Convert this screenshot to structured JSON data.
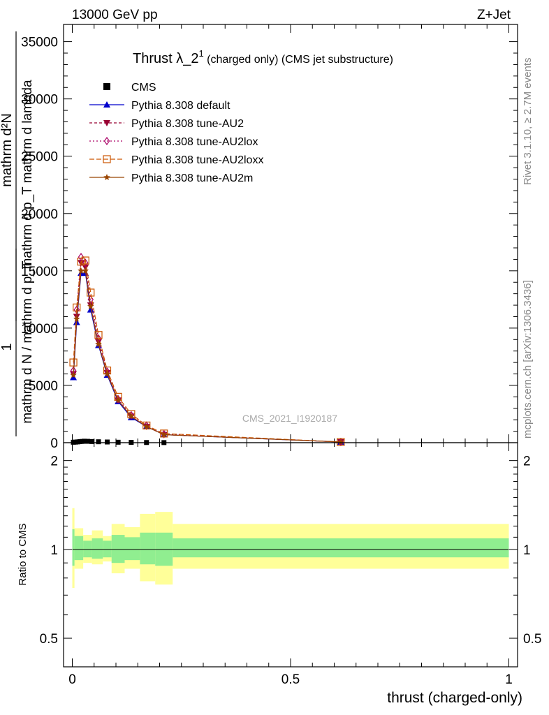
{
  "header": {
    "left": "13000 GeV pp",
    "right": "Z+Jet"
  },
  "title": {
    "main": "Thrust λ_2",
    "sup": "1",
    "rest": " (charged only) (CMS jet substructure)"
  },
  "side": {
    "rivet": "Rivet 3.1.10, ≥ 2.7M events",
    "mcplots": "mcplots.cern.ch [arXiv:1306.3436]"
  },
  "watermark": "CMS_2021_I1920187",
  "ylabel_main": {
    "frac_top_1": "1",
    "frac_bot_1": "mathrm d N / mathrm d p_T",
    "frac_top_2": "mathrm d²N",
    "frac_bot_2": "mathrm d p_T mathrm d lambda"
  },
  "ylabel_ratio": "Ratio to CMS",
  "xlabel": "thrust (charged-only)",
  "colors": {
    "green_band": "#90ee90",
    "yellow_band": "#ffff99",
    "default": "#0000cc",
    "au2": "#990033",
    "au2lox": "#aa0066",
    "au2loxx": "#cc5500",
    "au2m": "#994400"
  },
  "chart_data": [
    {
      "type": "line",
      "xlim": [
        -0.02,
        1.02
      ],
      "ylim": [
        0,
        36500
      ],
      "yticks": [
        0,
        5000,
        10000,
        15000,
        20000,
        25000,
        30000,
        35000
      ],
      "ytick_labels": [
        "0",
        "5000",
        "10000",
        "15000",
        "20000",
        "25000",
        "30000",
        "35000"
      ],
      "legend_position": "top-left",
      "grid": false,
      "series": [
        {
          "name": "CMS",
          "marker": "square",
          "x": [
            0.0025,
            0.0075,
            0.0125,
            0.0175,
            0.0225,
            0.0275,
            0.035,
            0.045,
            0.06,
            0.08,
            0.105,
            0.135,
            0.17,
            0.21
          ],
          "y": [
            40,
            50,
            70,
            90,
            110,
            130,
            120,
            100,
            80,
            60,
            40,
            25,
            15,
            8
          ]
        },
        {
          "name": "Pythia 8.308 default",
          "marker": "triangle-up",
          "x": [
            0.0025,
            0.01,
            0.02,
            0.03,
            0.042,
            0.06,
            0.08,
            0.105,
            0.135,
            0.17,
            0.21,
            0.615
          ],
          "y": [
            5700,
            10500,
            14800,
            14800,
            11600,
            8500,
            5900,
            3600,
            2200,
            1400,
            700,
            60
          ]
        },
        {
          "name": "Pythia 8.308 tune-AU2",
          "marker": "triangle-down",
          "x": [
            0.0025,
            0.01,
            0.02,
            0.03,
            0.042,
            0.06,
            0.08,
            0.105,
            0.135,
            0.17,
            0.21,
            0.615
          ],
          "y": [
            6000,
            11000,
            15700,
            15300,
            12000,
            8800,
            6100,
            3700,
            2300,
            1400,
            700,
            60
          ]
        },
        {
          "name": "Pythia 8.308 tune-AU2lox",
          "marker": "diamond-open",
          "x": [
            0.0025,
            0.01,
            0.02,
            0.03,
            0.042,
            0.06,
            0.08,
            0.105,
            0.135,
            0.17,
            0.21,
            0.615
          ],
          "y": [
            6300,
            11600,
            16200,
            15700,
            12500,
            9100,
            6200,
            3800,
            2400,
            1500,
            750,
            60
          ]
        },
        {
          "name": "Pythia 8.308 tune-AU2loxx",
          "marker": "square-open",
          "x": [
            0.0025,
            0.01,
            0.02,
            0.03,
            0.042,
            0.06,
            0.08,
            0.105,
            0.135,
            0.17,
            0.21,
            0.615
          ],
          "y": [
            7000,
            11800,
            15800,
            15900,
            13100,
            9400,
            6300,
            4000,
            2500,
            1500,
            800,
            60
          ]
        },
        {
          "name": "Pythia 8.308 tune-AU2m",
          "marker": "star",
          "x": [
            0.0025,
            0.01,
            0.02,
            0.03,
            0.042,
            0.06,
            0.08,
            0.105,
            0.135,
            0.17,
            0.21,
            0.615
          ],
          "y": [
            5900,
            10800,
            15000,
            15000,
            11900,
            8600,
            6000,
            3700,
            2300,
            1400,
            700,
            60
          ]
        }
      ]
    },
    {
      "type": "area",
      "ylabel": "Ratio to CMS",
      "xlabel": "thrust (charged-only)",
      "xlim": [
        -0.02,
        1.02
      ],
      "ylim": [
        0.4,
        2.3
      ],
      "log_y": true,
      "xticks": [
        0,
        0.5,
        1
      ],
      "xtick_labels": [
        "0",
        "0.5",
        "1"
      ],
      "yticks": [
        0.5,
        1,
        2
      ],
      "ytick_labels": [
        "0.5",
        "1",
        "2"
      ],
      "reference_line": 1,
      "bins": [
        {
          "x0": 0.0,
          "x1": 0.005,
          "green": [
            0.88,
            1.17
          ],
          "yellow": [
            0.74,
            1.38
          ]
        },
        {
          "x0": 0.005,
          "x1": 0.025,
          "green": [
            0.92,
            1.11
          ],
          "yellow": [
            0.86,
            1.18
          ]
        },
        {
          "x0": 0.025,
          "x1": 0.045,
          "green": [
            0.94,
            1.07
          ],
          "yellow": [
            0.9,
            1.12
          ]
        },
        {
          "x0": 0.045,
          "x1": 0.07,
          "green": [
            0.93,
            1.09
          ],
          "yellow": [
            0.89,
            1.16
          ]
        },
        {
          "x0": 0.07,
          "x1": 0.09,
          "green": [
            0.94,
            1.07
          ],
          "yellow": [
            0.91,
            1.11
          ]
        },
        {
          "x0": 0.09,
          "x1": 0.12,
          "green": [
            0.9,
            1.12
          ],
          "yellow": [
            0.83,
            1.22
          ]
        },
        {
          "x0": 0.12,
          "x1": 0.155,
          "green": [
            0.92,
            1.1
          ],
          "yellow": [
            0.86,
            1.19
          ]
        },
        {
          "x0": 0.155,
          "x1": 0.19,
          "green": [
            0.89,
            1.14
          ],
          "yellow": [
            0.78,
            1.32
          ]
        },
        {
          "x0": 0.19,
          "x1": 0.23,
          "green": [
            0.88,
            1.14
          ],
          "yellow": [
            0.76,
            1.34
          ]
        },
        {
          "x0": 0.23,
          "x1": 1.0,
          "green": [
            0.94,
            1.09
          ],
          "yellow": [
            0.86,
            1.22
          ]
        }
      ]
    }
  ]
}
